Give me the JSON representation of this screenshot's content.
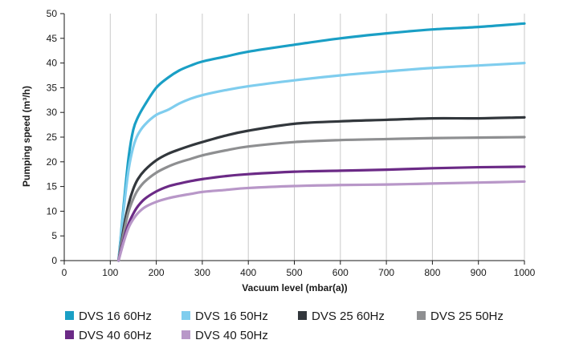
{
  "chart_data": {
    "type": "line",
    "title": "",
    "xlabel": "Vacuum level (mbar(a))",
    "ylabel": "Pumping speed (m³/h)",
    "xlim": [
      0,
      1000
    ],
    "ylim": [
      0,
      50
    ],
    "xticks": [
      0,
      100,
      200,
      300,
      400,
      500,
      600,
      700,
      800,
      900,
      1000
    ],
    "yticks": [
      0,
      5,
      10,
      15,
      20,
      25,
      30,
      35,
      40,
      45,
      50
    ],
    "grid": "vertical",
    "legend_position": "bottom",
    "series": [
      {
        "name": "DVS 16 60Hz",
        "color": "#1a9fc5",
        "x": [
          118,
          130,
          140,
          150,
          160,
          175,
          200,
          225,
          250,
          275,
          300,
          350,
          400,
          500,
          600,
          700,
          800,
          900,
          1000
        ],
        "y": [
          0,
          12,
          21,
          26.5,
          29,
          31.5,
          35,
          37,
          38.5,
          39.5,
          40.3,
          41.3,
          42.3,
          43.7,
          45,
          46,
          46.8,
          47.3,
          48
        ]
      },
      {
        "name": "DVS 16 50Hz",
        "color": "#7fcdee",
        "x": [
          118,
          130,
          140,
          150,
          160,
          175,
          200,
          225,
          250,
          275,
          300,
          350,
          400,
          500,
          600,
          700,
          800,
          900,
          1000
        ],
        "y": [
          0,
          11,
          18.5,
          23,
          25.5,
          27.5,
          29.5,
          30.5,
          31.8,
          32.8,
          33.5,
          34.5,
          35.3,
          36.5,
          37.5,
          38.3,
          39,
          39.5,
          40
        ]
      },
      {
        "name": "DVS 25 60Hz",
        "color": "#32373c",
        "x": [
          118,
          130,
          140,
          150,
          160,
          175,
          200,
          225,
          250,
          275,
          300,
          350,
          400,
          500,
          600,
          700,
          800,
          900,
          1000
        ],
        "y": [
          0,
          7,
          11.5,
          14.5,
          16.5,
          18.3,
          20.3,
          21.6,
          22.5,
          23.3,
          24,
          25.3,
          26.3,
          27.7,
          28.2,
          28.5,
          28.8,
          28.8,
          29
        ]
      },
      {
        "name": "DVS 25 50Hz",
        "color": "#8e8f91",
        "x": [
          118,
          130,
          140,
          150,
          160,
          175,
          200,
          225,
          250,
          275,
          300,
          350,
          400,
          500,
          600,
          700,
          800,
          900,
          1000
        ],
        "y": [
          0,
          6,
          10,
          12.5,
          14.3,
          16,
          17.8,
          19,
          19.9,
          20.6,
          21.3,
          22.3,
          23.1,
          24,
          24.4,
          24.6,
          24.8,
          24.9,
          25
        ]
      },
      {
        "name": "DVS 40 60Hz",
        "color": "#6b2a86",
        "x": [
          118,
          130,
          140,
          150,
          160,
          175,
          200,
          225,
          250,
          275,
          300,
          350,
          400,
          500,
          600,
          700,
          800,
          900,
          1000
        ],
        "y": [
          0,
          4.5,
          7.5,
          9.5,
          11,
          12.5,
          14,
          15,
          15.6,
          16.1,
          16.5,
          17.1,
          17.5,
          18,
          18.2,
          18.4,
          18.7,
          18.9,
          19
        ]
      },
      {
        "name": "DVS 40 50Hz",
        "color": "#b897c8",
        "x": [
          118,
          130,
          140,
          150,
          160,
          175,
          200,
          225,
          250,
          275,
          300,
          350,
          400,
          500,
          600,
          700,
          800,
          900,
          1000
        ],
        "y": [
          0,
          4,
          6.7,
          8.4,
          9.6,
          10.8,
          11.9,
          12.6,
          13.1,
          13.5,
          13.9,
          14.3,
          14.7,
          15.1,
          15.3,
          15.4,
          15.6,
          15.8,
          16
        ]
      }
    ]
  }
}
